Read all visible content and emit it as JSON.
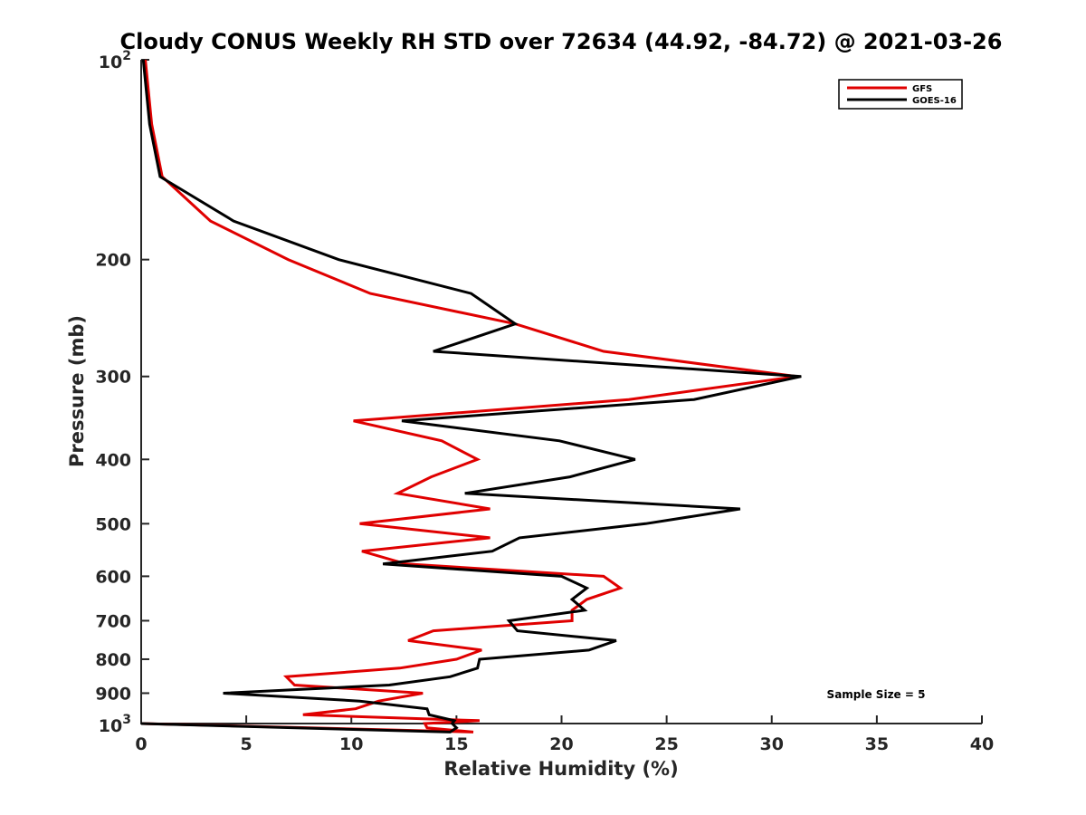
{
  "chart_data": {
    "type": "line",
    "title": "Cloudy CONUS Weekly RH STD over 72634 (44.92, -84.72) @ 2021-03-26",
    "xlabel": "Relative Humidity (%)",
    "ylabel": "Pressure (mb)",
    "xlim": [
      0,
      40
    ],
    "ylim": [
      100,
      1000
    ],
    "y_scale": "log",
    "y_reversed": true,
    "x_ticks": [
      "0",
      "5",
      "10",
      "15",
      "20",
      "25",
      "30",
      "35",
      "40"
    ],
    "y_ticks": [
      {
        "value": 100,
        "base": "10",
        "exp": "2"
      },
      {
        "value": 200,
        "label": "200"
      },
      {
        "value": 300,
        "label": "300"
      },
      {
        "value": 400,
        "label": "400"
      },
      {
        "value": 500,
        "label": "500"
      },
      {
        "value": 600,
        "label": "600"
      },
      {
        "value": 700,
        "label": "700"
      },
      {
        "value": 800,
        "label": "800"
      },
      {
        "value": 900,
        "label": "900"
      },
      {
        "value": 1000,
        "base": "10",
        "exp": "3"
      }
    ],
    "legend_position": "top-right",
    "grid": false,
    "annotation": "Sample Size = 5",
    "series": [
      {
        "name": "GFS",
        "color": "#e00000",
        "points": [
          [
            0.2,
            100
          ],
          [
            0.5,
            125
          ],
          [
            1.0,
            150
          ],
          [
            3.3,
            175
          ],
          [
            7.0,
            200
          ],
          [
            10.9,
            225
          ],
          [
            17.8,
            250
          ],
          [
            22.0,
            275
          ],
          [
            31.2,
            300
          ],
          [
            23.2,
            325
          ],
          [
            10.1,
            350
          ],
          [
            14.3,
            375
          ],
          [
            16.0,
            400
          ],
          [
            13.8,
            425
          ],
          [
            12.2,
            450
          ],
          [
            16.6,
            475
          ],
          [
            10.4,
            500
          ],
          [
            16.6,
            525
          ],
          [
            10.5,
            550
          ],
          [
            12.6,
            575
          ],
          [
            22.0,
            600
          ],
          [
            22.8,
            625
          ],
          [
            21.2,
            650
          ],
          [
            20.5,
            675
          ],
          [
            20.5,
            700
          ],
          [
            13.9,
            725
          ],
          [
            12.7,
            750
          ],
          [
            16.2,
            775
          ],
          [
            15.0,
            800
          ],
          [
            12.3,
            825
          ],
          [
            6.9,
            850
          ],
          [
            7.3,
            875
          ],
          [
            13.4,
            900
          ],
          [
            11.3,
            925
          ],
          [
            10.2,
            950
          ],
          [
            7.7,
            970
          ],
          [
            16.1,
            990
          ],
          [
            13.5,
            1000
          ],
          [
            13.6,
            1015
          ],
          [
            15.8,
            1030
          ],
          [
            0.0,
            1000
          ]
        ]
      },
      {
        "name": "GOES-16",
        "color": "#000000",
        "points": [
          [
            0.1,
            100
          ],
          [
            0.4,
            125
          ],
          [
            0.9,
            150
          ],
          [
            4.4,
            175
          ],
          [
            9.4,
            200
          ],
          [
            15.7,
            225
          ],
          [
            17.8,
            250
          ],
          [
            13.9,
            275
          ],
          [
            31.4,
            300
          ],
          [
            26.3,
            325
          ],
          [
            12.4,
            350
          ],
          [
            19.9,
            375
          ],
          [
            23.5,
            400
          ],
          [
            20.4,
            425
          ],
          [
            15.4,
            450
          ],
          [
            28.5,
            475
          ],
          [
            24.0,
            500
          ],
          [
            18.0,
            525
          ],
          [
            16.7,
            550
          ],
          [
            11.5,
            575
          ],
          [
            20.0,
            600
          ],
          [
            21.2,
            625
          ],
          [
            20.5,
            650
          ],
          [
            21.1,
            675
          ],
          [
            17.5,
            700
          ],
          [
            17.9,
            725
          ],
          [
            22.6,
            750
          ],
          [
            21.3,
            775
          ],
          [
            16.1,
            800
          ],
          [
            16.0,
            825
          ],
          [
            14.7,
            850
          ],
          [
            11.8,
            875
          ],
          [
            3.9,
            900
          ],
          [
            10.4,
            925
          ],
          [
            13.6,
            950
          ],
          [
            13.7,
            970
          ],
          [
            14.9,
            990
          ],
          [
            14.8,
            1000
          ],
          [
            15.0,
            1015
          ],
          [
            14.7,
            1030
          ],
          [
            0.0,
            1000
          ]
        ]
      }
    ]
  }
}
